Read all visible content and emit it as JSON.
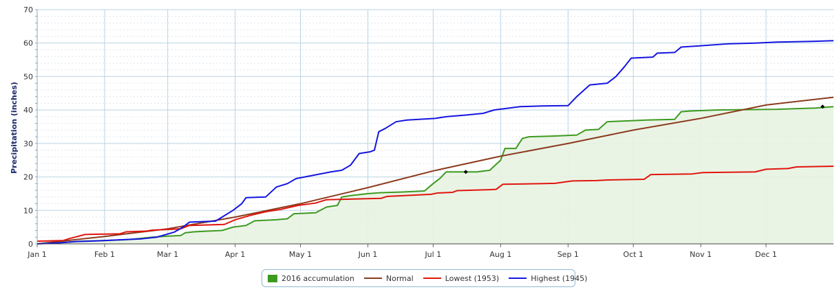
{
  "chart_data": {
    "type": "line",
    "title": "",
    "xlabel": "",
    "ylabel": "Precipitation (inches)",
    "ylim": [
      0,
      70
    ],
    "xlim": [
      0,
      366
    ],
    "x_ticks": [
      {
        "label": "Jan 1",
        "day": 0
      },
      {
        "label": "Feb 1",
        "day": 31
      },
      {
        "label": "Mar 1",
        "day": 60
      },
      {
        "label": "Apr 1",
        "day": 91
      },
      {
        "label": "May 1",
        "day": 121
      },
      {
        "label": "Jun 1",
        "day": 152
      },
      {
        "label": "Jul 1",
        "day": 182
      },
      {
        "label": "Aug 1",
        "day": 213
      },
      {
        "label": "Sep 1",
        "day": 244
      },
      {
        "label": "Oct 1",
        "day": 274
      },
      {
        "label": "Nov 1",
        "day": 305
      },
      {
        "label": "Dec 1",
        "day": 335
      }
    ],
    "y_ticks": [
      0,
      10,
      20,
      30,
      40,
      50,
      60,
      70
    ],
    "grid": true,
    "legend_position": "bottom-center",
    "series": [
      {
        "name": "2016 accumulation",
        "style": "area",
        "color": "#3c9a1f",
        "fill": "#e8f3e2",
        "points": [
          [
            0,
            0
          ],
          [
            10,
            0.3
          ],
          [
            20,
            0.8
          ],
          [
            31,
            1.0
          ],
          [
            40,
            1.2
          ],
          [
            47,
            1.6
          ],
          [
            53,
            2.0
          ],
          [
            60,
            2.3
          ],
          [
            66,
            2.5
          ],
          [
            68,
            3.3
          ],
          [
            72,
            3.6
          ],
          [
            78,
            3.8
          ],
          [
            85,
            4.0
          ],
          [
            90,
            5.0
          ],
          [
            96,
            5.5
          ],
          [
            100,
            6.9
          ],
          [
            110,
            7.2
          ],
          [
            115,
            7.5
          ],
          [
            118,
            9.0
          ],
          [
            128,
            9.3
          ],
          [
            133,
            11.0
          ],
          [
            138,
            11.5
          ],
          [
            140,
            14.0
          ],
          [
            145,
            14.5
          ],
          [
            152,
            15.0
          ],
          [
            158,
            15.3
          ],
          [
            168,
            15.5
          ],
          [
            178,
            15.8
          ],
          [
            182,
            18.0
          ],
          [
            185,
            19.5
          ],
          [
            188,
            21.5
          ],
          [
            202,
            21.5
          ],
          [
            208,
            22.0
          ],
          [
            213,
            25.0
          ],
          [
            215,
            28.5
          ],
          [
            220,
            28.5
          ],
          [
            223,
            31.5
          ],
          [
            226,
            32.0
          ],
          [
            237,
            32.2
          ],
          [
            248,
            32.5
          ],
          [
            252,
            34.0
          ],
          [
            258,
            34.2
          ],
          [
            262,
            36.5
          ],
          [
            273,
            36.8
          ],
          [
            280,
            37.0
          ],
          [
            293,
            37.2
          ],
          [
            296,
            39.5
          ],
          [
            300,
            39.7
          ],
          [
            312,
            40.0
          ],
          [
            340,
            40.2
          ],
          [
            358,
            40.6
          ],
          [
            366,
            41.0
          ]
        ],
        "markers": [
          [
            197,
            21.5
          ],
          [
            361,
            41.0
          ]
        ]
      },
      {
        "name": "Normal",
        "style": "line",
        "color": "#8b3a1c",
        "points": [
          [
            0,
            0
          ],
          [
            31,
            2.2
          ],
          [
            60,
            4.5
          ],
          [
            91,
            8.0
          ],
          [
            121,
            12.0
          ],
          [
            152,
            16.8
          ],
          [
            182,
            21.8
          ],
          [
            213,
            26.2
          ],
          [
            244,
            30.0
          ],
          [
            274,
            34.0
          ],
          [
            305,
            37.5
          ],
          [
            335,
            41.5
          ],
          [
            366,
            43.8
          ]
        ]
      },
      {
        "name": "Lowest (1953)",
        "style": "line",
        "color": "#e0140c",
        "points": [
          [
            0,
            0.8
          ],
          [
            12,
            1.0
          ],
          [
            15,
            1.6
          ],
          [
            22,
            2.8
          ],
          [
            38,
            3.0
          ],
          [
            41,
            3.6
          ],
          [
            50,
            3.8
          ],
          [
            53,
            4.1
          ],
          [
            66,
            4.5
          ],
          [
            70,
            5.5
          ],
          [
            86,
            5.8
          ],
          [
            91,
            7.2
          ],
          [
            98,
            8.5
          ],
          [
            105,
            9.6
          ],
          [
            112,
            10.3
          ],
          [
            120,
            11.5
          ],
          [
            128,
            12.2
          ],
          [
            133,
            13.2
          ],
          [
            158,
            13.6
          ],
          [
            161,
            14.2
          ],
          [
            168,
            14.4
          ],
          [
            181,
            14.8
          ],
          [
            184,
            15.2
          ],
          [
            191,
            15.4
          ],
          [
            193,
            15.9
          ],
          [
            208,
            16.2
          ],
          [
            211,
            16.3
          ],
          [
            214,
            17.8
          ],
          [
            233,
            18.0
          ],
          [
            238,
            18.1
          ],
          [
            246,
            18.8
          ],
          [
            257,
            18.9
          ],
          [
            262,
            19.1
          ],
          [
            279,
            19.3
          ],
          [
            282,
            20.7
          ],
          [
            301,
            20.9
          ],
          [
            306,
            21.3
          ],
          [
            330,
            21.5
          ],
          [
            335,
            22.3
          ],
          [
            345,
            22.5
          ],
          [
            349,
            23.0
          ],
          [
            366,
            23.2
          ]
        ]
      },
      {
        "name": "Highest (1945)",
        "style": "line",
        "color": "#1414e0",
        "points": [
          [
            0,
            0
          ],
          [
            10,
            0.3
          ],
          [
            18,
            0.7
          ],
          [
            28,
            0.9
          ],
          [
            38,
            1.2
          ],
          [
            48,
            1.5
          ],
          [
            55,
            2.0
          ],
          [
            63,
            3.5
          ],
          [
            67,
            5.0
          ],
          [
            70,
            6.5
          ],
          [
            82,
            6.8
          ],
          [
            85,
            8.0
          ],
          [
            90,
            10.0
          ],
          [
            94,
            12.0
          ],
          [
            96,
            13.8
          ],
          [
            105,
            14.0
          ],
          [
            110,
            17.0
          ],
          [
            115,
            18.0
          ],
          [
            119,
            19.5
          ],
          [
            127,
            20.5
          ],
          [
            135,
            21.5
          ],
          [
            140,
            22.0
          ],
          [
            144,
            23.5
          ],
          [
            148,
            27.0
          ],
          [
            153,
            27.5
          ],
          [
            155,
            28.0
          ],
          [
            157,
            33.5
          ],
          [
            160,
            34.5
          ],
          [
            165,
            36.5
          ],
          [
            170,
            37.0
          ],
          [
            183,
            37.5
          ],
          [
            188,
            38.0
          ],
          [
            197,
            38.5
          ],
          [
            205,
            39.0
          ],
          [
            210,
            40.0
          ],
          [
            222,
            41.0
          ],
          [
            232,
            41.2
          ],
          [
            244,
            41.3
          ],
          [
            248,
            44.0
          ],
          [
            254,
            47.5
          ],
          [
            262,
            48.0
          ],
          [
            266,
            50.0
          ],
          [
            270,
            53.0
          ],
          [
            273,
            55.5
          ],
          [
            283,
            55.8
          ],
          [
            285,
            57.0
          ],
          [
            293,
            57.2
          ],
          [
            296,
            58.8
          ],
          [
            305,
            59.2
          ],
          [
            318,
            59.8
          ],
          [
            330,
            60.0
          ],
          [
            340,
            60.3
          ],
          [
            356,
            60.5
          ],
          [
            366,
            60.7
          ]
        ]
      }
    ]
  },
  "legend": {
    "items": [
      {
        "label": "2016 accumulation",
        "color": "#3c9a1f",
        "kind": "box"
      },
      {
        "label": "Normal",
        "color": "#8b3a1c",
        "kind": "line"
      },
      {
        "label": "Lowest (1953)",
        "color": "#e0140c",
        "kind": "line"
      },
      {
        "label": "Highest (1945)",
        "color": "#1414e0",
        "kind": "line"
      }
    ]
  }
}
